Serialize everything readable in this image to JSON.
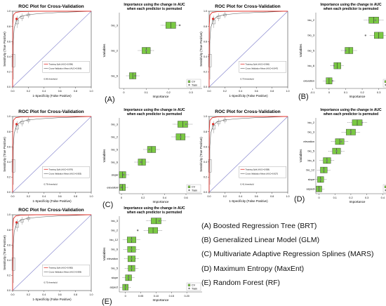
{
  "colors": {
    "train": "#e0302a",
    "cv": "#555555",
    "chance": "#8a8ad0",
    "box": "#7ac943",
    "boxEdge": "#333333",
    "cvDot": "#7a7a7a"
  },
  "roc_title": "ROC Plot for Cross-Validation",
  "roc_xlabel": "1-Specificity (False Positive)",
  "roc_ylabel": "Sensitivity (True Positive)",
  "imp_title_1": "Importance using the change in AUC",
  "imp_title_2": "when each predictor is permuted",
  "imp_xlabel": "Importance",
  "imp_ylabel": "Variables",
  "imp_legend": [
    "CV",
    "Train"
  ],
  "model_legend": [
    "(A) Boosted Regression Tree (BRT)",
    "(B) Generalized Linear Model (GLM)",
    "(C) Multivariate Adaptive Regression Splines (MARS)",
    "(D) Maximum Entropy (MaxEnt)",
    "(E) Random Forest (RF)"
  ],
  "chart_data": [
    {
      "type": "line",
      "panel": "A",
      "title": "ROC Plot for Cross-Validation",
      "xlabel": "1-Specificity (False Positive)",
      "ylabel": "Sensitivity (True Positive)",
      "xlim": [
        0,
        1
      ],
      "ylim": [
        0,
        1
      ],
      "legend": [
        "Training Split (AUC=0.996)",
        "Cross-Validation Mean (AUC=0.966)"
      ],
      "threshold_text": "0.86 threshold"
    },
    {
      "type": "bar",
      "panel": "A",
      "subtype": "boxplot",
      "title": "Importance using the change in AUC when each predictor is permuted",
      "xlabel": "Importance",
      "ylabel": "Variables",
      "categories": [
        "bio_3",
        "bio_2",
        "bio_6"
      ],
      "cv_median": [
        0.21,
        0.1,
        0.04
      ],
      "train": [
        0.25,
        0.1,
        0.05
      ],
      "xlim": [
        -0.02,
        0.35
      ],
      "ticks": [
        "0",
        "0.1",
        "0.2",
        "0.3"
      ],
      "tick_values": [
        0,
        0.1,
        0.2,
        0.3
      ],
      "legend": [
        "CV",
        "Train"
      ]
    },
    {
      "type": "line",
      "panel": "B",
      "title": "ROC Plot for Cross-Validation",
      "xlabel": "1-Specificity (False Positive)",
      "ylabel": "Sensitivity (True Positive)",
      "xlim": [
        0,
        1
      ],
      "ylim": [
        0,
        1
      ],
      "legend": [
        "Training Split (AUC=0.966)",
        "Cross Validation Mean (AUC=0.947)"
      ],
      "threshold_text": "0.79 threshold"
    },
    {
      "type": "bar",
      "panel": "B",
      "subtype": "boxplot",
      "title": "Importance using the change in AUC when each predictor is permuted",
      "xlabel": "Importance",
      "ylabel": "Variables",
      "categories": [
        "bio_2",
        "bio_3",
        "bio_5",
        "bio_6",
        "elevation"
      ],
      "cv_median": [
        0.27,
        0.3,
        0.12,
        0.05,
        0.0
      ],
      "train": [
        0.28,
        0.22,
        0.1,
        0.03,
        0.02
      ],
      "xlim": [
        -0.08,
        0.42
      ],
      "ticks": [
        "-0.1",
        "0",
        "0.1",
        "0.2",
        "0.3",
        "0.4"
      ],
      "tick_values": [
        -0.1,
        0,
        0.1,
        0.2,
        0.3,
        0.4
      ],
      "legend": [
        "CV",
        "Train"
      ]
    },
    {
      "type": "line",
      "panel": "C",
      "title": "ROC Plot for Cross-Validation",
      "xlabel": "1-Specificity (False Positive)",
      "ylabel": "Sensitivity (True Positive)",
      "xlim": [
        0,
        1
      ],
      "ylim": [
        0,
        1
      ],
      "legend": [
        "Training Split (AUC=0.976)",
        "Cross Validation Mean (AUC=0.953)"
      ],
      "threshold_text": "0.78 threshold"
    },
    {
      "type": "bar",
      "panel": "C",
      "subtype": "boxplot",
      "title": "Importance using the change in AUC when each predictor is permuted",
      "xlabel": "Importance",
      "ylabel": "Variables",
      "categories": [
        "bio_3",
        "bio_2",
        "bio_5",
        "bio_6",
        "slope",
        "elevation"
      ],
      "cv_median": [
        0.57,
        0.55,
        0.28,
        0.19,
        0.01,
        0.01
      ],
      "train": [
        0.6,
        0.55,
        0.26,
        0.18,
        0.02,
        0.0
      ],
      "xlim": [
        -0.02,
        0.75
      ],
      "ticks": [
        "0",
        "0.2",
        "0.4",
        "0.6"
      ],
      "tick_values": [
        0,
        0.2,
        0.4,
        0.6
      ],
      "legend": [
        "CV",
        "Train"
      ]
    },
    {
      "type": "line",
      "panel": "D",
      "title": "ROC Plot for Cross-Validation",
      "xlabel": "1-Specificity (False Positive)",
      "ylabel": "Sensitivity (True Positive)",
      "xlim": [
        0,
        1
      ],
      "ylim": [
        0,
        1
      ],
      "legend": [
        "Training Split (AUC=0.958)",
        "Cross Validation Mean (AUC=0.927)"
      ],
      "threshold_text": "0.41 threshold"
    },
    {
      "type": "bar",
      "panel": "D",
      "subtype": "boxplot",
      "title": "Importance using the change in AUC when each predictor is permuted",
      "xlabel": "Importance",
      "ylabel": "Variables",
      "categories": [
        "bio_2",
        "bio_3",
        "elevation",
        "bio_5",
        "bio_6",
        "bio_12",
        "slope",
        "aspect"
      ],
      "cv_median": [
        0.24,
        0.2,
        0.13,
        0.11,
        0.05,
        0.03,
        0.01,
        0.0
      ],
      "train": [
        0.27,
        0.2,
        0.14,
        0.11,
        0.05,
        0.03,
        0.01,
        0.0
      ],
      "xlim": [
        -0.02,
        0.5
      ],
      "ticks": [
        "0",
        "0.1",
        "0.2",
        "0.3",
        "0.4"
      ],
      "tick_values": [
        0,
        0.1,
        0.2,
        0.3,
        0.4
      ],
      "legend": [
        "CV",
        "Train"
      ]
    },
    {
      "type": "line",
      "panel": "E",
      "title": "ROC Plot for Cross-Validation",
      "xlabel": "1-Specificity (False Positive)",
      "ylabel": "Sensitivity (True Positive)",
      "xlim": [
        0,
        1
      ],
      "ylim": [
        0,
        1
      ],
      "legend": [
        "Training Split (AUC=0.982)",
        "Cross Validation Mean (AUC=0.959)"
      ],
      "threshold_text": "0.75 threshold"
    },
    {
      "type": "bar",
      "panel": "E",
      "subtype": "boxplot",
      "title": "Importance using the change in AUC when each predictor is permuted",
      "xlabel": "Importance",
      "ylabel": "Variables",
      "categories": [
        "bio_3",
        "bio_2",
        "bio_12",
        "bio_6",
        "elevation",
        "bio_5",
        "slope",
        "aspect"
      ],
      "cv_median": [
        0.1,
        0.09,
        0.02,
        0.02,
        0.02,
        0.02,
        0.01,
        0.0
      ],
      "train": [
        0.11,
        0.04,
        0.02,
        0.02,
        0.02,
        0.02,
        0.01,
        0.0
      ],
      "xlim": [
        -0.02,
        0.25
      ],
      "ticks": [
        "0",
        "0.05",
        "0.10",
        "0.15",
        "0.20"
      ],
      "tick_values": [
        0,
        0.05,
        0.1,
        0.15,
        0.2
      ],
      "legend": [
        "CV",
        "Train"
      ]
    }
  ]
}
